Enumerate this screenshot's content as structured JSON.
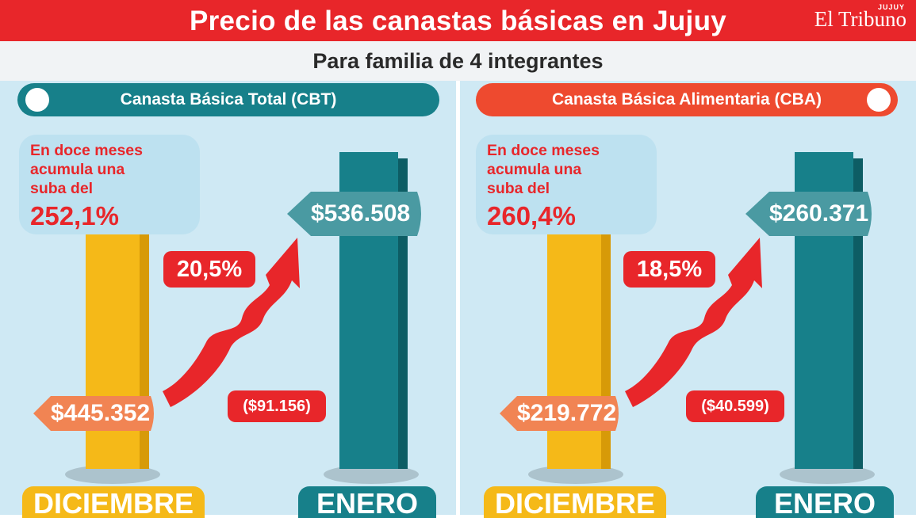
{
  "header": {
    "title": "Precio de las canastas básicas en Jujuy",
    "brand": "El Tribuno",
    "brand_sup": "JUJUY",
    "subtitle": "Para familia de 4 integrantes"
  },
  "colors": {
    "red": "#e8262a",
    "teal": "#17808a",
    "yellow": "#f5b918",
    "orange": "#f18453",
    "panel_bg": "#cfe9f4"
  },
  "icons": [
    "up-arrow-icon",
    "trend-arrow-icon",
    "circle-marker-icon"
  ],
  "chart_data": [
    {
      "type": "bar",
      "title": "Canasta Básica Total (CBT)",
      "categories": [
        "DICIEMBRE",
        "ENERO"
      ],
      "values": [
        445352,
        536508
      ],
      "value_labels": [
        "$445.352",
        "$536.508"
      ],
      "monthly_change": "20,5%",
      "difference": "($91.156)",
      "accum_text": [
        "En doce meses",
        "acumula una",
        "suba del"
      ],
      "accum_pct": "252,1%"
    },
    {
      "type": "bar",
      "title": "Canasta Básica Alimentaria (CBA)",
      "categories": [
        "DICIEMBRE",
        "ENERO"
      ],
      "values": [
        219772,
        260371
      ],
      "value_labels": [
        "$219.772",
        "$260.371"
      ],
      "monthly_change": "18,5%",
      "difference": "($40.599)",
      "accum_text": [
        "En doce meses",
        "acumula una",
        "suba del"
      ],
      "accum_pct": "260,4%"
    }
  ]
}
